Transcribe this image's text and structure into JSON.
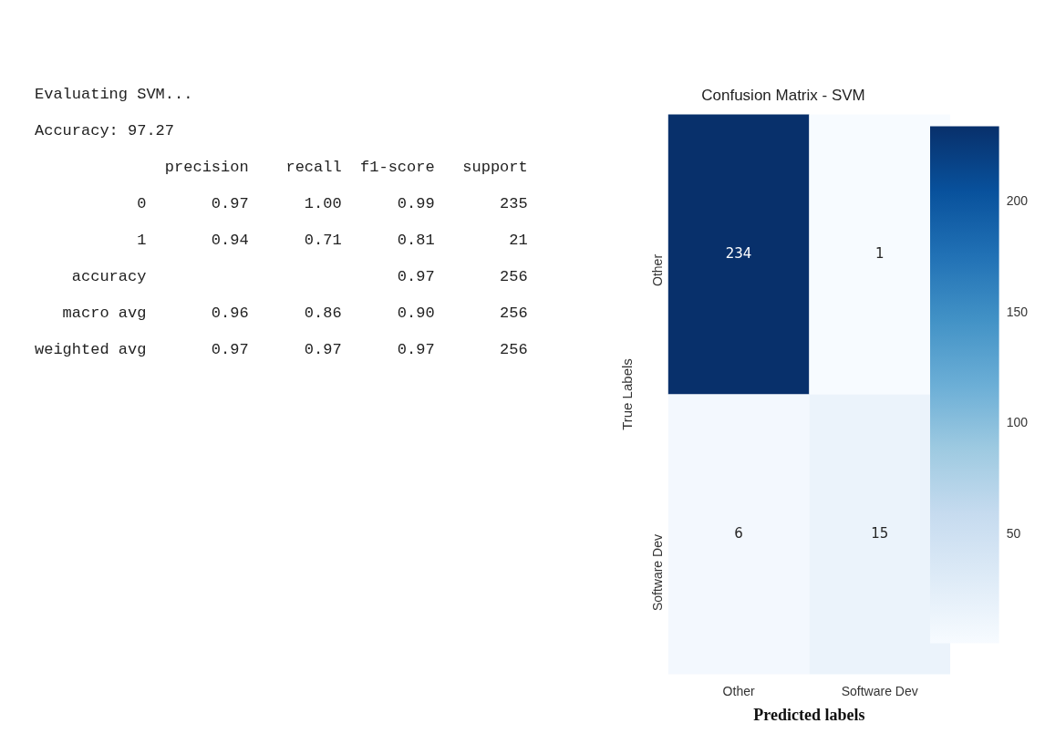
{
  "chart_data": [
    {
      "type": "other",
      "annotations": [
        "Evaluating SVM...",
        "Accuracy: 97.27",
        "              precision    recall  f1-score   support",
        "           0       0.97      1.00      0.99       235",
        "           1       0.94      0.71      0.81        21",
        "    accuracy                           0.97       256",
        "   macro avg       0.96      0.86      0.90       256",
        "weighted avg       0.97      0.97      0.97       256"
      ]
    },
    {
      "type": "heatmap",
      "title": "Confusion Matrix - SVM",
      "xlabel": "Predicted labels",
      "ylabel": "True Labels",
      "categories": [
        "Other",
        "Software Dev"
      ],
      "y_categories": [
        "Other",
        "Software Dev"
      ],
      "cells": [
        [
          234,
          1
        ],
        [
          6,
          15
        ]
      ],
      "data_labels": true,
      "clim": [
        1,
        234
      ],
      "cticks": [
        50,
        100,
        150,
        200
      ]
    }
  ]
}
